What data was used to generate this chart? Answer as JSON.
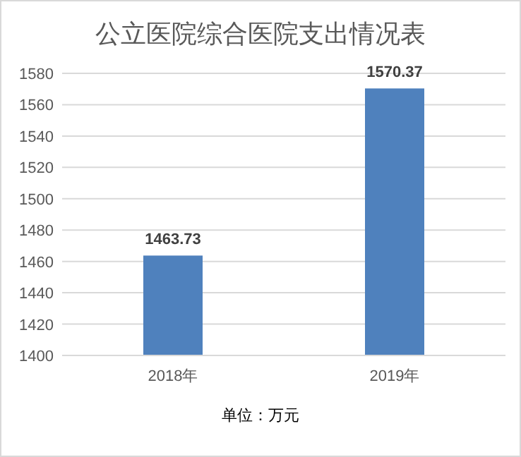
{
  "chart_data": {
    "type": "bar",
    "title": "公立医院综合医院支出情况表",
    "categories": [
      "2018年",
      "2019年"
    ],
    "values": [
      1463.73,
      1570.37
    ],
    "color": "#4f81bd",
    "ylim": [
      1400,
      1580
    ],
    "yticks": [
      1400,
      1420,
      1440,
      1460,
      1480,
      1500,
      1520,
      1540,
      1560,
      1580
    ],
    "grid": "y",
    "data_labels": true,
    "annotations": [
      "单位：万元"
    ]
  }
}
